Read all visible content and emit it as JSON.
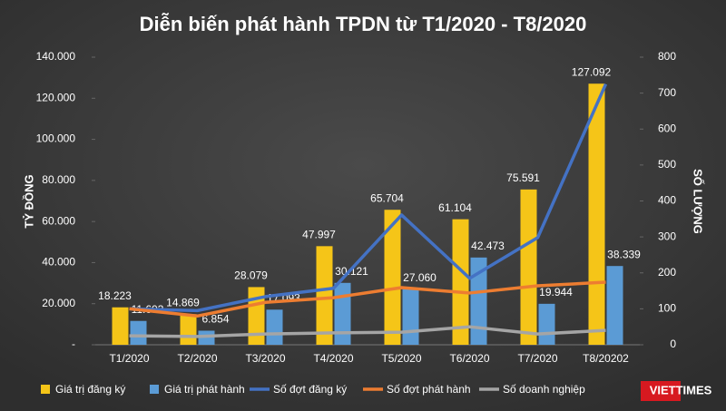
{
  "chart_data": {
    "type": "bar_line",
    "title": "Diễn biến phát hành TPDN từ T1/2020 - T8/2020",
    "ylabel": "TỶ ĐỒNG",
    "y2label": "SỐ LƯỢNG",
    "categories": [
      "T1/2020",
      "T2/2020",
      "T3/2020",
      "T4/2020",
      "T5/2020",
      "T6/2020",
      "T7/2020",
      "T8/20202"
    ],
    "series": [
      {
        "name": "Giá trị đăng ký",
        "kind": "bar",
        "color": "#f5c518",
        "values": [
          18223,
          14869,
          28079,
          47997,
          65704,
          61104,
          75591,
          127092
        ],
        "value_labels": [
          "18.223",
          "14.869",
          "28.079",
          "47.997",
          "65.704",
          "61.104",
          "75.591",
          "127.092"
        ]
      },
      {
        "name": "Giá trị phát hành",
        "kind": "bar",
        "color": "#5b9bd5",
        "values": [
          11603,
          6854,
          17093,
          30121,
          27060,
          42473,
          19944,
          38339
        ],
        "value_labels": [
          "11.603",
          "6.854",
          "17.093",
          "30.121",
          "27.060",
          "42.473",
          "19.944",
          "38.339"
        ]
      },
      {
        "name": "Số đợt đăng ký",
        "kind": "line",
        "axis": "y2",
        "color": "#4472c4",
        "values": [
          100,
          95,
          134,
          157,
          361,
          185,
          298,
          725
        ]
      },
      {
        "name": "Số đợt phát hành",
        "kind": "line",
        "axis": "y2",
        "color": "#ed7d31",
        "values": [
          100,
          80,
          118,
          131,
          159,
          144,
          164,
          174
        ]
      },
      {
        "name": "Số doanh nghiệp",
        "kind": "line",
        "axis": "y2",
        "color": "#a5a5a5",
        "values": [
          25,
          23,
          30,
          33,
          35,
          50,
          30,
          40
        ]
      }
    ],
    "ylim": [
      0,
      140000
    ],
    "yticks": [
      {
        "value": 0,
        "label": "-"
      },
      {
        "value": 20000,
        "label": "20.000"
      },
      {
        "value": 40000,
        "label": "40.000"
      },
      {
        "value": 60000,
        "label": "60.000"
      },
      {
        "value": 80000,
        "label": "80.000"
      },
      {
        "value": 100000,
        "label": "100.000"
      },
      {
        "value": 120000,
        "label": "120.000"
      },
      {
        "value": 140000,
        "label": "140.000"
      }
    ],
    "y2lim": [
      0,
      800
    ],
    "y2ticks": [
      0,
      100,
      200,
      300,
      400,
      500,
      600,
      700,
      800
    ],
    "watermark": "VIETTIMES"
  }
}
